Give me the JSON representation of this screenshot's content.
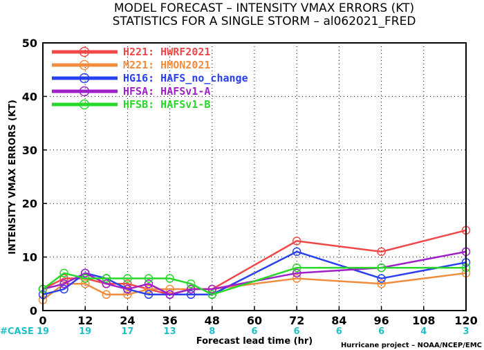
{
  "title_line1": "MODEL FORECAST – INTENSITY VMAX ERRORS (KT)",
  "title_line2": "STATISTICS FOR A SINGLE STORM – al062021_FRED",
  "credit": "Hurricane project – NOAA/NCEP/EMC",
  "case_label": "#CASE",
  "chart_data": {
    "type": "line",
    "xlabel": "Forecast lead time (hr)",
    "ylabel": "INTENSITY VMAX ERRORS (KT)",
    "xlim": [
      0,
      120
    ],
    "ylim": [
      0,
      50
    ],
    "xticks": [
      0,
      12,
      24,
      36,
      48,
      60,
      72,
      84,
      96,
      108,
      120
    ],
    "yticks": [
      0,
      10,
      20,
      30,
      40,
      50
    ],
    "grid": true,
    "legend_position": "top-left",
    "case_counts": [
      {
        "x": 0,
        "label": "19"
      },
      {
        "x": 12,
        "label": "19"
      },
      {
        "x": 24,
        "label": "17"
      },
      {
        "x": 36,
        "label": "13"
      },
      {
        "x": 48,
        "label": "8"
      },
      {
        "x": 60,
        "label": "6"
      },
      {
        "x": 72,
        "label": "6"
      },
      {
        "x": 84,
        "label": "6"
      },
      {
        "x": 96,
        "label": "6"
      },
      {
        "x": 108,
        "label": "4"
      },
      {
        "x": 120,
        "label": "3"
      }
    ],
    "series": [
      {
        "name": "H221: HWRF2021",
        "color": "#f04848",
        "x": [
          0,
          6,
          12,
          18,
          24,
          30,
          36,
          42,
          48,
          72,
          96,
          120
        ],
        "y": [
          4,
          6,
          6,
          5,
          5,
          4,
          3,
          4,
          4,
          13,
          11,
          15
        ]
      },
      {
        "name": "M221: HMON2021",
        "color": "#f08c3c",
        "x": [
          0,
          6,
          12,
          18,
          24,
          30,
          36,
          42,
          48,
          72,
          96,
          120
        ],
        "y": [
          2,
          5,
          5,
          3,
          3,
          4,
          4,
          4,
          4,
          6,
          5,
          7
        ]
      },
      {
        "name": "HG16: HAFS_no_change",
        "color": "#2840f0",
        "x": [
          0,
          6,
          12,
          18,
          24,
          30,
          36,
          42,
          48,
          72,
          96,
          120
        ],
        "y": [
          3,
          4,
          7,
          6,
          4,
          3,
          3,
          3,
          3,
          11,
          6,
          9
        ]
      },
      {
        "name": "HFSA: HAFSv1-A",
        "color": "#a020c8",
        "x": [
          0,
          6,
          12,
          18,
          24,
          30,
          36,
          42,
          48,
          72,
          96,
          120
        ],
        "y": [
          4,
          5,
          7,
          5,
          4,
          5,
          3,
          4,
          4,
          7,
          8,
          11
        ]
      },
      {
        "name": "HFSB: HAFSv1-B",
        "color": "#28d828",
        "x": [
          0,
          6,
          12,
          18,
          24,
          30,
          36,
          42,
          48,
          72,
          96,
          120
        ],
        "y": [
          4,
          7,
          6,
          6,
          6,
          6,
          6,
          5,
          3,
          8,
          8,
          8
        ]
      }
    ]
  }
}
